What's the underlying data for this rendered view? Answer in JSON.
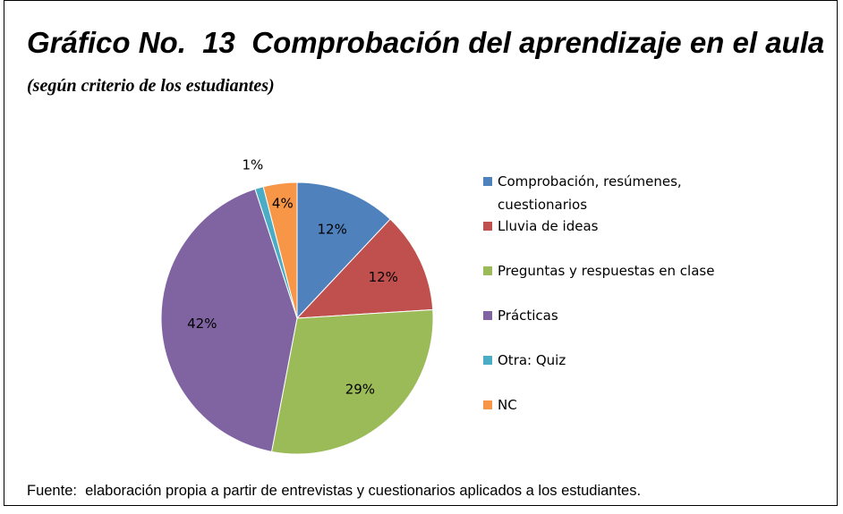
{
  "chart_data": {
    "type": "pie",
    "title": "Gráfico No.  13  Comprobación del aprendizaje en el aula",
    "subtitle": "(según criterio de los estudiantes)",
    "categories": [
      "Comprobación, resúmenes, cuestionarios",
      "Lluvia de ideas",
      "Preguntas y respuestas en clase",
      "Prácticas",
      "Otra:  Quiz",
      "NC"
    ],
    "values": [
      12,
      12,
      29,
      42,
      1,
      4
    ],
    "value_labels": [
      "12%",
      "12%",
      "29%",
      "42%",
      "1%",
      "4%"
    ],
    "colors": [
      "#4f81bd",
      "#c0504d",
      "#9bbb59",
      "#8064a2",
      "#4bacc6",
      "#f79646"
    ],
    "legend": "right",
    "source": "Fuente:  elaboración propia a partir de entrevistas y cuestionarios aplicados a los estudiantes."
  }
}
